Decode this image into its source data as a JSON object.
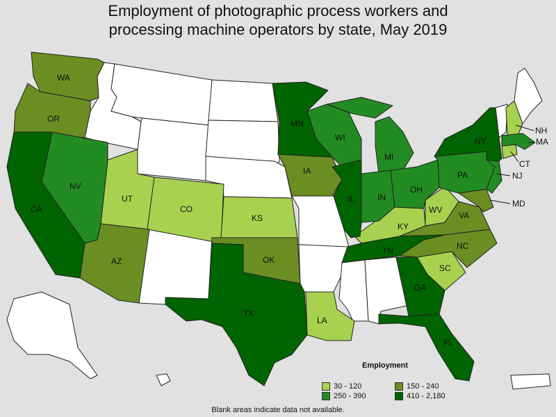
{
  "title_line1": "Employment of photographic process workers and",
  "title_line2": "processing machine operators by state, May 2019",
  "legend": {
    "title": "Employment",
    "items": [
      {
        "label": "30 - 120",
        "color": "#a8d14f"
      },
      {
        "label": "150 - 240",
        "color": "#6b8e23"
      },
      {
        "label": "250 - 390",
        "color": "#228b22"
      },
      {
        "label": "410 - 2,180",
        "color": "#006400"
      }
    ]
  },
  "note": "Blank areas indicate data not available.",
  "colors": {
    "no_data": "#ffffff",
    "c1": "#a8d14f",
    "c2": "#6b8e23",
    "c3": "#228b22",
    "c4": "#006400",
    "background": "#e1e1e1"
  },
  "state_labels": {
    "WA": "WA",
    "OR": "OR",
    "CA": "CA",
    "NV": "NV",
    "UT": "UT",
    "AZ": "AZ",
    "CO": "CO",
    "KS": "KS",
    "OK": "OK",
    "TX": "TX",
    "MN": "MN",
    "IA": "IA",
    "WI": "WI",
    "IL": "IL",
    "MI": "MI",
    "IN": "IN",
    "OH": "OH",
    "KY": "KY",
    "TN": "TN",
    "LA": "LA",
    "GA": "GA",
    "FL": "FL",
    "SC": "SC",
    "NC": "NC",
    "VA": "VA",
    "WV": "WV",
    "PA": "PA",
    "NY": "NY",
    "NJ": "NJ",
    "MD": "MD",
    "CT": "CT",
    "MA": "MA",
    "NH": "NH"
  }
}
